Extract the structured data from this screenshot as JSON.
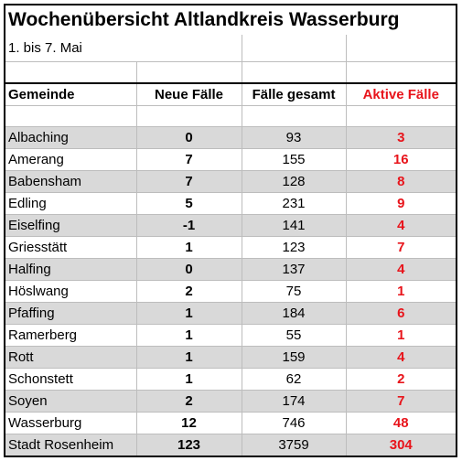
{
  "title": "Wochenübersicht Altlandkreis Wasserburg",
  "subtitle": "1. bis 7. Mai",
  "headers": {
    "gemeinde": "Gemeinde",
    "neue_faelle": "Neue Fälle",
    "faelle_gesamt": "Fälle gesamt",
    "aktive_faelle": "Aktive Fälle"
  },
  "rows": [
    {
      "gemeinde": "Albaching",
      "neue": "0",
      "gesamt": "93",
      "aktive": "3"
    },
    {
      "gemeinde": "Amerang",
      "neue": "7",
      "gesamt": "155",
      "aktive": "16"
    },
    {
      "gemeinde": "Babensham",
      "neue": "7",
      "gesamt": "128",
      "aktive": "8"
    },
    {
      "gemeinde": "Edling",
      "neue": "5",
      "gesamt": "231",
      "aktive": "9"
    },
    {
      "gemeinde": "Eiselfing",
      "neue": "-1",
      "gesamt": "141",
      "aktive": "4"
    },
    {
      "gemeinde": "Griesstätt",
      "neue": "1",
      "gesamt": "123",
      "aktive": "7"
    },
    {
      "gemeinde": "Halfing",
      "neue": "0",
      "gesamt": "137",
      "aktive": "4"
    },
    {
      "gemeinde": "Höslwang",
      "neue": "2",
      "gesamt": "75",
      "aktive": "1"
    },
    {
      "gemeinde": "Pfaffing",
      "neue": "1",
      "gesamt": "184",
      "aktive": "6"
    },
    {
      "gemeinde": "Ramerberg",
      "neue": "1",
      "gesamt": "55",
      "aktive": "1"
    },
    {
      "gemeinde": "Rott",
      "neue": "1",
      "gesamt": "159",
      "aktive": "4"
    },
    {
      "gemeinde": "Schonstett",
      "neue": "1",
      "gesamt": "62",
      "aktive": "2"
    },
    {
      "gemeinde": "Soyen",
      "neue": "2",
      "gesamt": "174",
      "aktive": "7"
    },
    {
      "gemeinde": "Wasserburg",
      "neue": "12",
      "gesamt": "746",
      "aktive": "48"
    },
    {
      "gemeinde": "Stadt Rosenheim",
      "neue": "123",
      "gesamt": "3759",
      "aktive": "304"
    }
  ],
  "colors": {
    "active_cases": "#e8141b",
    "shaded_row": "#d9d9d9"
  }
}
